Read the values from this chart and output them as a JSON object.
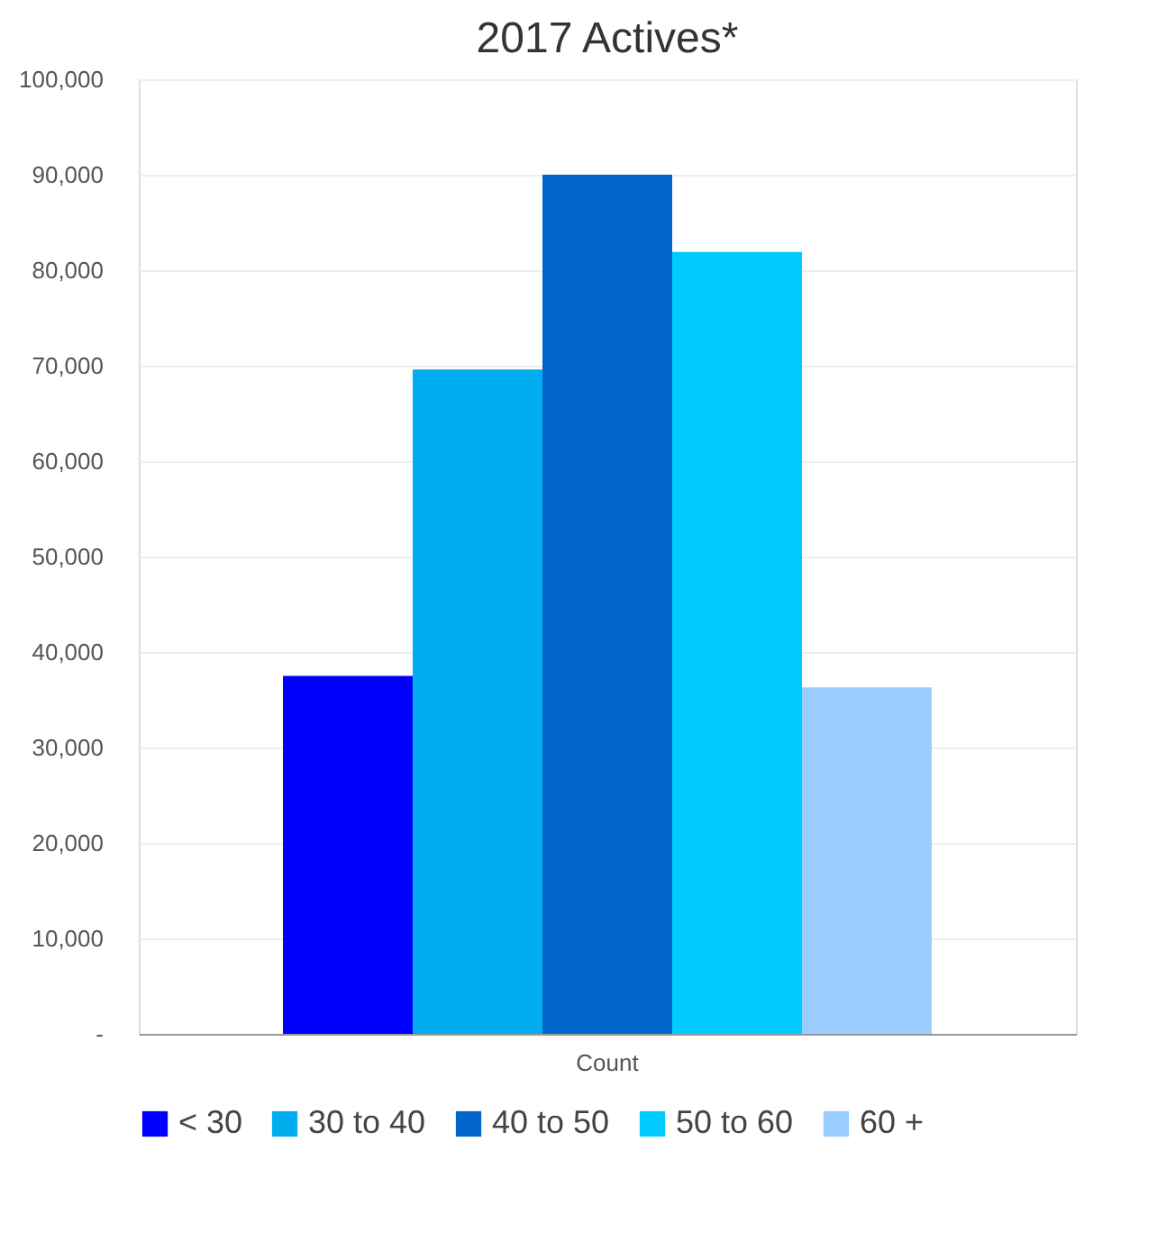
{
  "chart_data": {
    "type": "bar",
    "title": "2017 Actives*",
    "categories": [
      "Count"
    ],
    "series": [
      {
        "name": "< 30",
        "color": "#0000ff",
        "values": [
          37500
        ]
      },
      {
        "name": "30 to 40",
        "color": "#00aeef",
        "values": [
          69600
        ]
      },
      {
        "name": "40 to 50",
        "color": "#0066cc",
        "values": [
          90000
        ]
      },
      {
        "name": "50 to 60",
        "color": "#00ccff",
        "values": [
          81900
        ]
      },
      {
        "name": "60 +",
        "color": "#99ccff",
        "values": [
          36300
        ]
      }
    ],
    "ylim": [
      0,
      100000
    ],
    "yticks": [
      {
        "value": 0,
        "label": "-"
      },
      {
        "value": 10000,
        "label": "10,000"
      },
      {
        "value": 20000,
        "label": "20,000"
      },
      {
        "value": 30000,
        "label": "30,000"
      },
      {
        "value": 40000,
        "label": "40,000"
      },
      {
        "value": 50000,
        "label": "50,000"
      },
      {
        "value": 60000,
        "label": "60,000"
      },
      {
        "value": 70000,
        "label": "70,000"
      },
      {
        "value": 80000,
        "label": "80,000"
      },
      {
        "value": 90000,
        "label": "90,000"
      },
      {
        "value": 100000,
        "label": "100,000"
      }
    ],
    "grid": "y",
    "legend": "bottom"
  }
}
